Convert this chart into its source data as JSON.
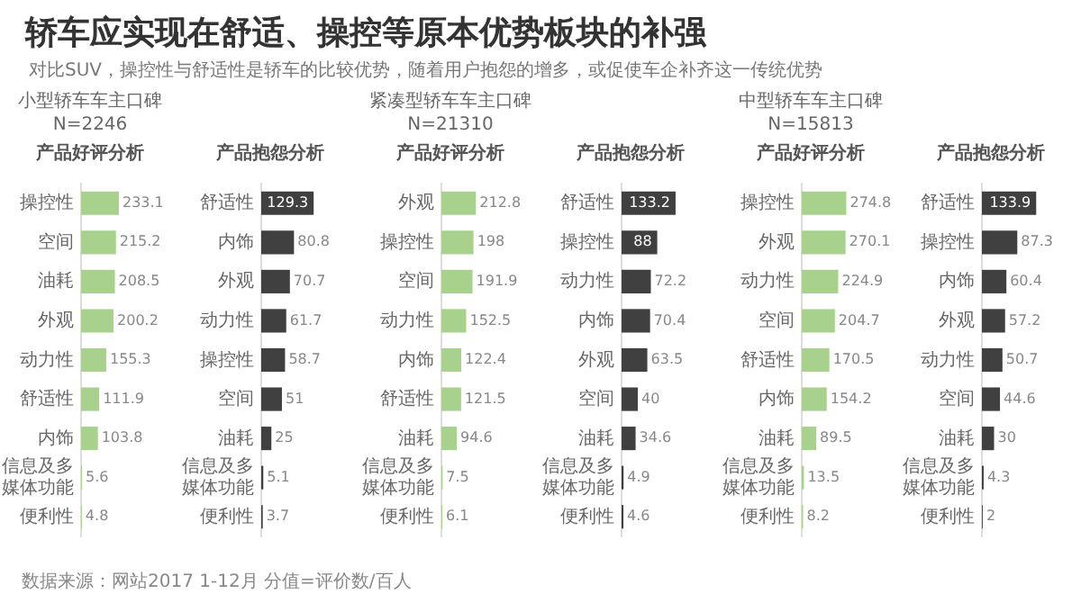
{
  "chart_data": [
    {
      "type": "other",
      "title": "轿车应实现在舒适、操控等原本优势板块的补强",
      "subtitle": "对比SUV，操控性与舒适性是轿车的比较优势，随着用户抱怨的增多，或促使车企补齐这一传统优势",
      "annotations": [
        "数据来源：网站2017 1-12月  分值=评价数/百人"
      ]
    },
    {
      "type": "bar",
      "orientation": "horizontal",
      "title": "小型轿车车主口碑",
      "subtitle": "N=2246",
      "annotations": [
        "产品好评分析"
      ],
      "categories": [
        "操控性",
        "空间",
        "油耗",
        "外观",
        "动力性",
        "舒适性",
        "内饰",
        "信息及多媒体功能",
        "便利性"
      ],
      "values": [
        233.1,
        215.2,
        208.5,
        200.2,
        155.3,
        111.9,
        103.8,
        5.6,
        4.8
      ],
      "color": "#a9d18e",
      "data_labels": true,
      "tick_labels": "y"
    },
    {
      "type": "bar",
      "orientation": "horizontal",
      "title": "产品抱怨分析",
      "categories": [
        "舒适性",
        "内饰",
        "外观",
        "动力性",
        "操控性",
        "空间",
        "油耗",
        "信息及多媒体功能",
        "便利性"
      ],
      "values": [
        129.3,
        80.8,
        70.7,
        61.7,
        58.7,
        51,
        25,
        5.1,
        3.7
      ],
      "color": "#404040",
      "data_labels": true,
      "tick_labels": "y"
    },
    {
      "type": "bar",
      "orientation": "horizontal",
      "title": "紧凑型轿车车主口碑",
      "subtitle": "N=21310",
      "annotations": [
        "产品好评分析"
      ],
      "categories": [
        "外观",
        "操控性",
        "空间",
        "动力性",
        "内饰",
        "舒适性",
        "油耗",
        "信息及多媒体功能",
        "便利性"
      ],
      "values": [
        212.8,
        198,
        191.9,
        152.5,
        122.4,
        121.5,
        94.6,
        7.5,
        6.1
      ],
      "color": "#a9d18e",
      "data_labels": true,
      "tick_labels": "y"
    },
    {
      "type": "bar",
      "orientation": "horizontal",
      "title": "产品抱怨分析",
      "categories": [
        "舒适性",
        "操控性",
        "动力性",
        "内饰",
        "外观",
        "空间",
        "油耗",
        "信息及多媒体功能",
        "便利性"
      ],
      "values": [
        133.2,
        88,
        72.2,
        70.4,
        63.5,
        40,
        34.6,
        4.9,
        4.6
      ],
      "color": "#404040",
      "data_labels": true,
      "tick_labels": "y"
    },
    {
      "type": "bar",
      "orientation": "horizontal",
      "title": "中型轿车车主口碑",
      "subtitle": "N=15813",
      "annotations": [
        "产品好评分析"
      ],
      "categories": [
        "操控性",
        "外观",
        "动力性",
        "空间",
        "舒适性",
        "内饰",
        "油耗",
        "信息及多媒体功能",
        "便利性"
      ],
      "values": [
        274.8,
        270.1,
        224.9,
        204.7,
        170.5,
        154.2,
        89.5,
        13.5,
        8.2
      ],
      "color": "#a9d18e",
      "data_labels": true,
      "tick_labels": "y"
    },
    {
      "type": "bar",
      "orientation": "horizontal",
      "title": "产品抱怨分析",
      "categories": [
        "舒适性",
        "操控性",
        "内饰",
        "外观",
        "动力性",
        "空间",
        "油耗",
        "信息及多媒体功能",
        "便利性"
      ],
      "values": [
        133.9,
        87.3,
        60.4,
        57.2,
        50.7,
        44.6,
        30,
        4.3,
        2
      ],
      "color": "#404040",
      "data_labels": true,
      "tick_labels": "y"
    }
  ]
}
